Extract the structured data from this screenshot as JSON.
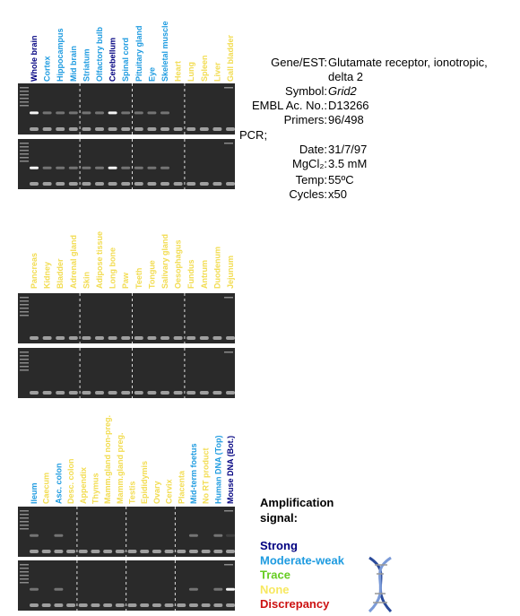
{
  "panels": [
    {
      "lanes": [
        {
          "label": "Whole brain",
          "color": "#000080"
        },
        {
          "label": "Cortex",
          "color": "#1e9be0"
        },
        {
          "label": "Hippocampus",
          "color": "#1e9be0"
        },
        {
          "label": "Mid brain",
          "color": "#1e9be0"
        },
        {
          "label": "Striatum",
          "color": "#1e9be0"
        },
        {
          "label": "Olfactory bulb",
          "color": "#1e9be0"
        },
        {
          "label": "Cerebellum",
          "color": "#000080"
        },
        {
          "label": "Spinal cord",
          "color": "#1e9be0"
        },
        {
          "label": "Pituitary gland",
          "color": "#1e9be0"
        },
        {
          "label": "Eye",
          "color": "#1e9be0"
        },
        {
          "label": "Skeletal muscle",
          "color": "#1e9be0"
        },
        {
          "label": "Heart",
          "color": "#f2dc50"
        },
        {
          "label": "Lung",
          "color": "#f2dc50"
        },
        {
          "label": "Spleen",
          "color": "#f2dc50"
        },
        {
          "label": "Liver",
          "color": "#f2dc50"
        },
        {
          "label": "Gall bladder",
          "color": "#f2dc50"
        }
      ]
    },
    {
      "lanes": [
        {
          "label": "Pancreas",
          "color": "#f2dc50"
        },
        {
          "label": "Kidney",
          "color": "#f2dc50"
        },
        {
          "label": "Bladder",
          "color": "#f2dc50"
        },
        {
          "label": "Adrenal gland",
          "color": "#f2dc50"
        },
        {
          "label": "Skin",
          "color": "#f2dc50"
        },
        {
          "label": "Adipose tissue",
          "color": "#f2dc50"
        },
        {
          "label": "Long bone",
          "color": "#f2dc50"
        },
        {
          "label": "Paw",
          "color": "#f2dc50"
        },
        {
          "label": "Teeth",
          "color": "#f2dc50"
        },
        {
          "label": "Tongue",
          "color": "#f2dc50"
        },
        {
          "label": "Salivary gland",
          "color": "#f2dc50"
        },
        {
          "label": "Oesophagus",
          "color": "#f2dc50"
        },
        {
          "label": "Fundus",
          "color": "#f2dc50"
        },
        {
          "label": "Antrum",
          "color": "#f2dc50"
        },
        {
          "label": "Duodenum",
          "color": "#f2dc50"
        },
        {
          "label": "Jejunum",
          "color": "#f2dc50"
        }
      ]
    },
    {
      "lanes": [
        {
          "label": "Ileum",
          "color": "#1e9be0"
        },
        {
          "label": "Caecum",
          "color": "#f2dc50"
        },
        {
          "label": "Asc. colon",
          "color": "#1e9be0"
        },
        {
          "label": "Desc. colon",
          "color": "#f2dc50"
        },
        {
          "label": "Appendix",
          "color": "#f2dc50"
        },
        {
          "label": "Thymus",
          "color": "#f2dc50"
        },
        {
          "label": "Mamm.gland non-preg.",
          "color": "#f2dc50"
        },
        {
          "label": "Mamm.gland preg.",
          "color": "#f2dc50"
        },
        {
          "label": "Testis",
          "color": "#f2dc50"
        },
        {
          "label": "Epididymis",
          "color": "#f2dc50"
        },
        {
          "label": "Ovary",
          "color": "#f2dc50"
        },
        {
          "label": "Cervix",
          "color": "#f2dc50"
        },
        {
          "label": "Placenta",
          "color": "#f2dc50"
        },
        {
          "label": "Mid-term foetus",
          "color": "#1e9be0"
        },
        {
          "label": "No RT product",
          "color": "#f2dc50"
        },
        {
          "label": "Human DNA (Top)",
          "color": "#1e9be0"
        },
        {
          "label": "Mouse DNA (Bot.)",
          "color": "#000080"
        }
      ]
    }
  ],
  "info": {
    "gene_key": "Gene/EST:",
    "gene_value": "Glutamate receptor, ionotropic,",
    "gene_value_2": "delta 2",
    "symbol_key": "Symbol:",
    "symbol_value": "Grid2",
    "embl_key": "EMBL Ac. No.:",
    "embl_value": "D13266",
    "primers_key": "Primers:",
    "primers_value": "96/498",
    "pcr": "PCR;",
    "date_key": "Date:",
    "date_value": "31/7/97",
    "mgcl_key": "MgCl₂:",
    "mgcl_value": "3.5 mM",
    "temp_key": "Temp:",
    "temp_value": "55ºC",
    "cycles_key": "Cycles:",
    "cycles_value": "x50"
  },
  "legend": {
    "title": "Amplification",
    "title_2": "signal:",
    "items": [
      {
        "label": "Strong",
        "color": "#000080"
      },
      {
        "label": "Moderate-weak",
        "color": "#1e9be0"
      },
      {
        "label": "Trace",
        "color": "#66cc22"
      },
      {
        "label": "None",
        "color": "#f7e860"
      },
      {
        "label": "Discrepancy",
        "color": "#cc1111"
      }
    ]
  }
}
